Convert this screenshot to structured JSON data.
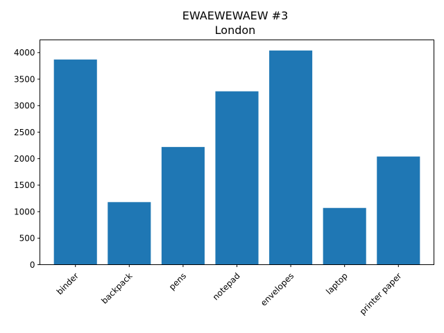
{
  "chart_data": {
    "type": "bar",
    "title": "EWAEWEWAEW  #3",
    "subtitle": "London",
    "xlabel": "",
    "ylabel": "",
    "categories": [
      "binder",
      "backpack",
      "pens",
      "notepad",
      "envelopes",
      "laptop",
      "printer paper"
    ],
    "values": [
      3870,
      1180,
      2220,
      3270,
      4040,
      1070,
      2040
    ],
    "ylim": [
      0,
      4240
    ],
    "yticks": [
      0,
      500,
      1000,
      1500,
      2000,
      2500,
      3000,
      3500,
      4000
    ],
    "grid": false,
    "legend": "none",
    "bar_color": "#1f77b4"
  }
}
